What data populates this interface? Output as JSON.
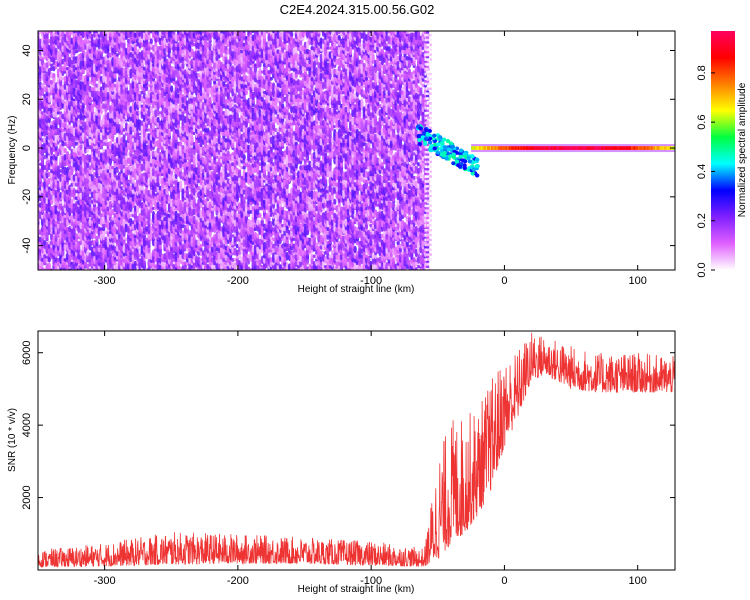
{
  "chart_data": [
    {
      "type": "heatmap",
      "title": "C2E4.2024.315.00.56.G02",
      "xlabel": "Height of straight line (km)",
      "ylabel": "Frequency (Hz)",
      "xlim": [
        -350,
        128
      ],
      "ylim": [
        -50,
        48
      ],
      "x_ticks": [
        -300,
        -200,
        -100,
        0,
        100
      ],
      "y_ticks": [
        -40,
        -20,
        0,
        20,
        40
      ],
      "colorbar": {
        "label": "Normalized spectral amplitude",
        "range": [
          0,
          0.97
        ],
        "ticks": [
          0.0,
          0.2,
          0.4,
          0.6,
          0.8
        ],
        "colors": [
          "#ffffff",
          "#e060ff",
          "#8020ff",
          "#0000ff",
          "#00ffff",
          "#00ff40",
          "#ffff00",
          "#ff8000",
          "#ff0000",
          "#ff0060"
        ]
      },
      "regions": [
        {
          "name": "noise",
          "x_range": [
            -350,
            -57
          ],
          "y_range": [
            -50,
            48
          ],
          "amplitude_range": [
            0.0,
            0.25
          ]
        },
        {
          "name": "burst",
          "x_range": [
            -65,
            -20
          ],
          "y_range": [
            -12,
            9
          ],
          "amplitude_range": [
            0.3,
            0.5
          ]
        },
        {
          "name": "carrier",
          "x_range": [
            -25,
            128
          ],
          "frequency": 0,
          "amplitude_range": [
            0.5,
            0.95
          ]
        }
      ]
    },
    {
      "type": "line",
      "xlabel": "Height of straight line (km)",
      "ylabel": "SNR (10 * v/v)",
      "xlim": [
        -350,
        128
      ],
      "ylim": [
        0,
        6600
      ],
      "x_ticks": [
        -300,
        -200,
        -100,
        0,
        100
      ],
      "y_ticks": [
        2000,
        4000,
        6000
      ],
      "color": "#ee3333",
      "envelope": {
        "x": [
          -350,
          -300,
          -250,
          -200,
          -150,
          -100,
          -60,
          -50,
          -40,
          -30,
          -20,
          -10,
          0,
          10,
          20,
          30,
          50,
          70,
          100,
          128
        ],
        "lower": [
          80,
          100,
          150,
          180,
          170,
          120,
          90,
          300,
          700,
          1000,
          1500,
          2200,
          3400,
          4200,
          5200,
          5400,
          5000,
          4900,
          4900,
          4900
        ],
        "upper": [
          550,
          750,
          1050,
          1000,
          900,
          800,
          600,
          3200,
          4200,
          4300,
          4500,
          5300,
          5900,
          6100,
          6600,
          6500,
          6200,
          6000,
          6000,
          5900
        ]
      }
    }
  ]
}
